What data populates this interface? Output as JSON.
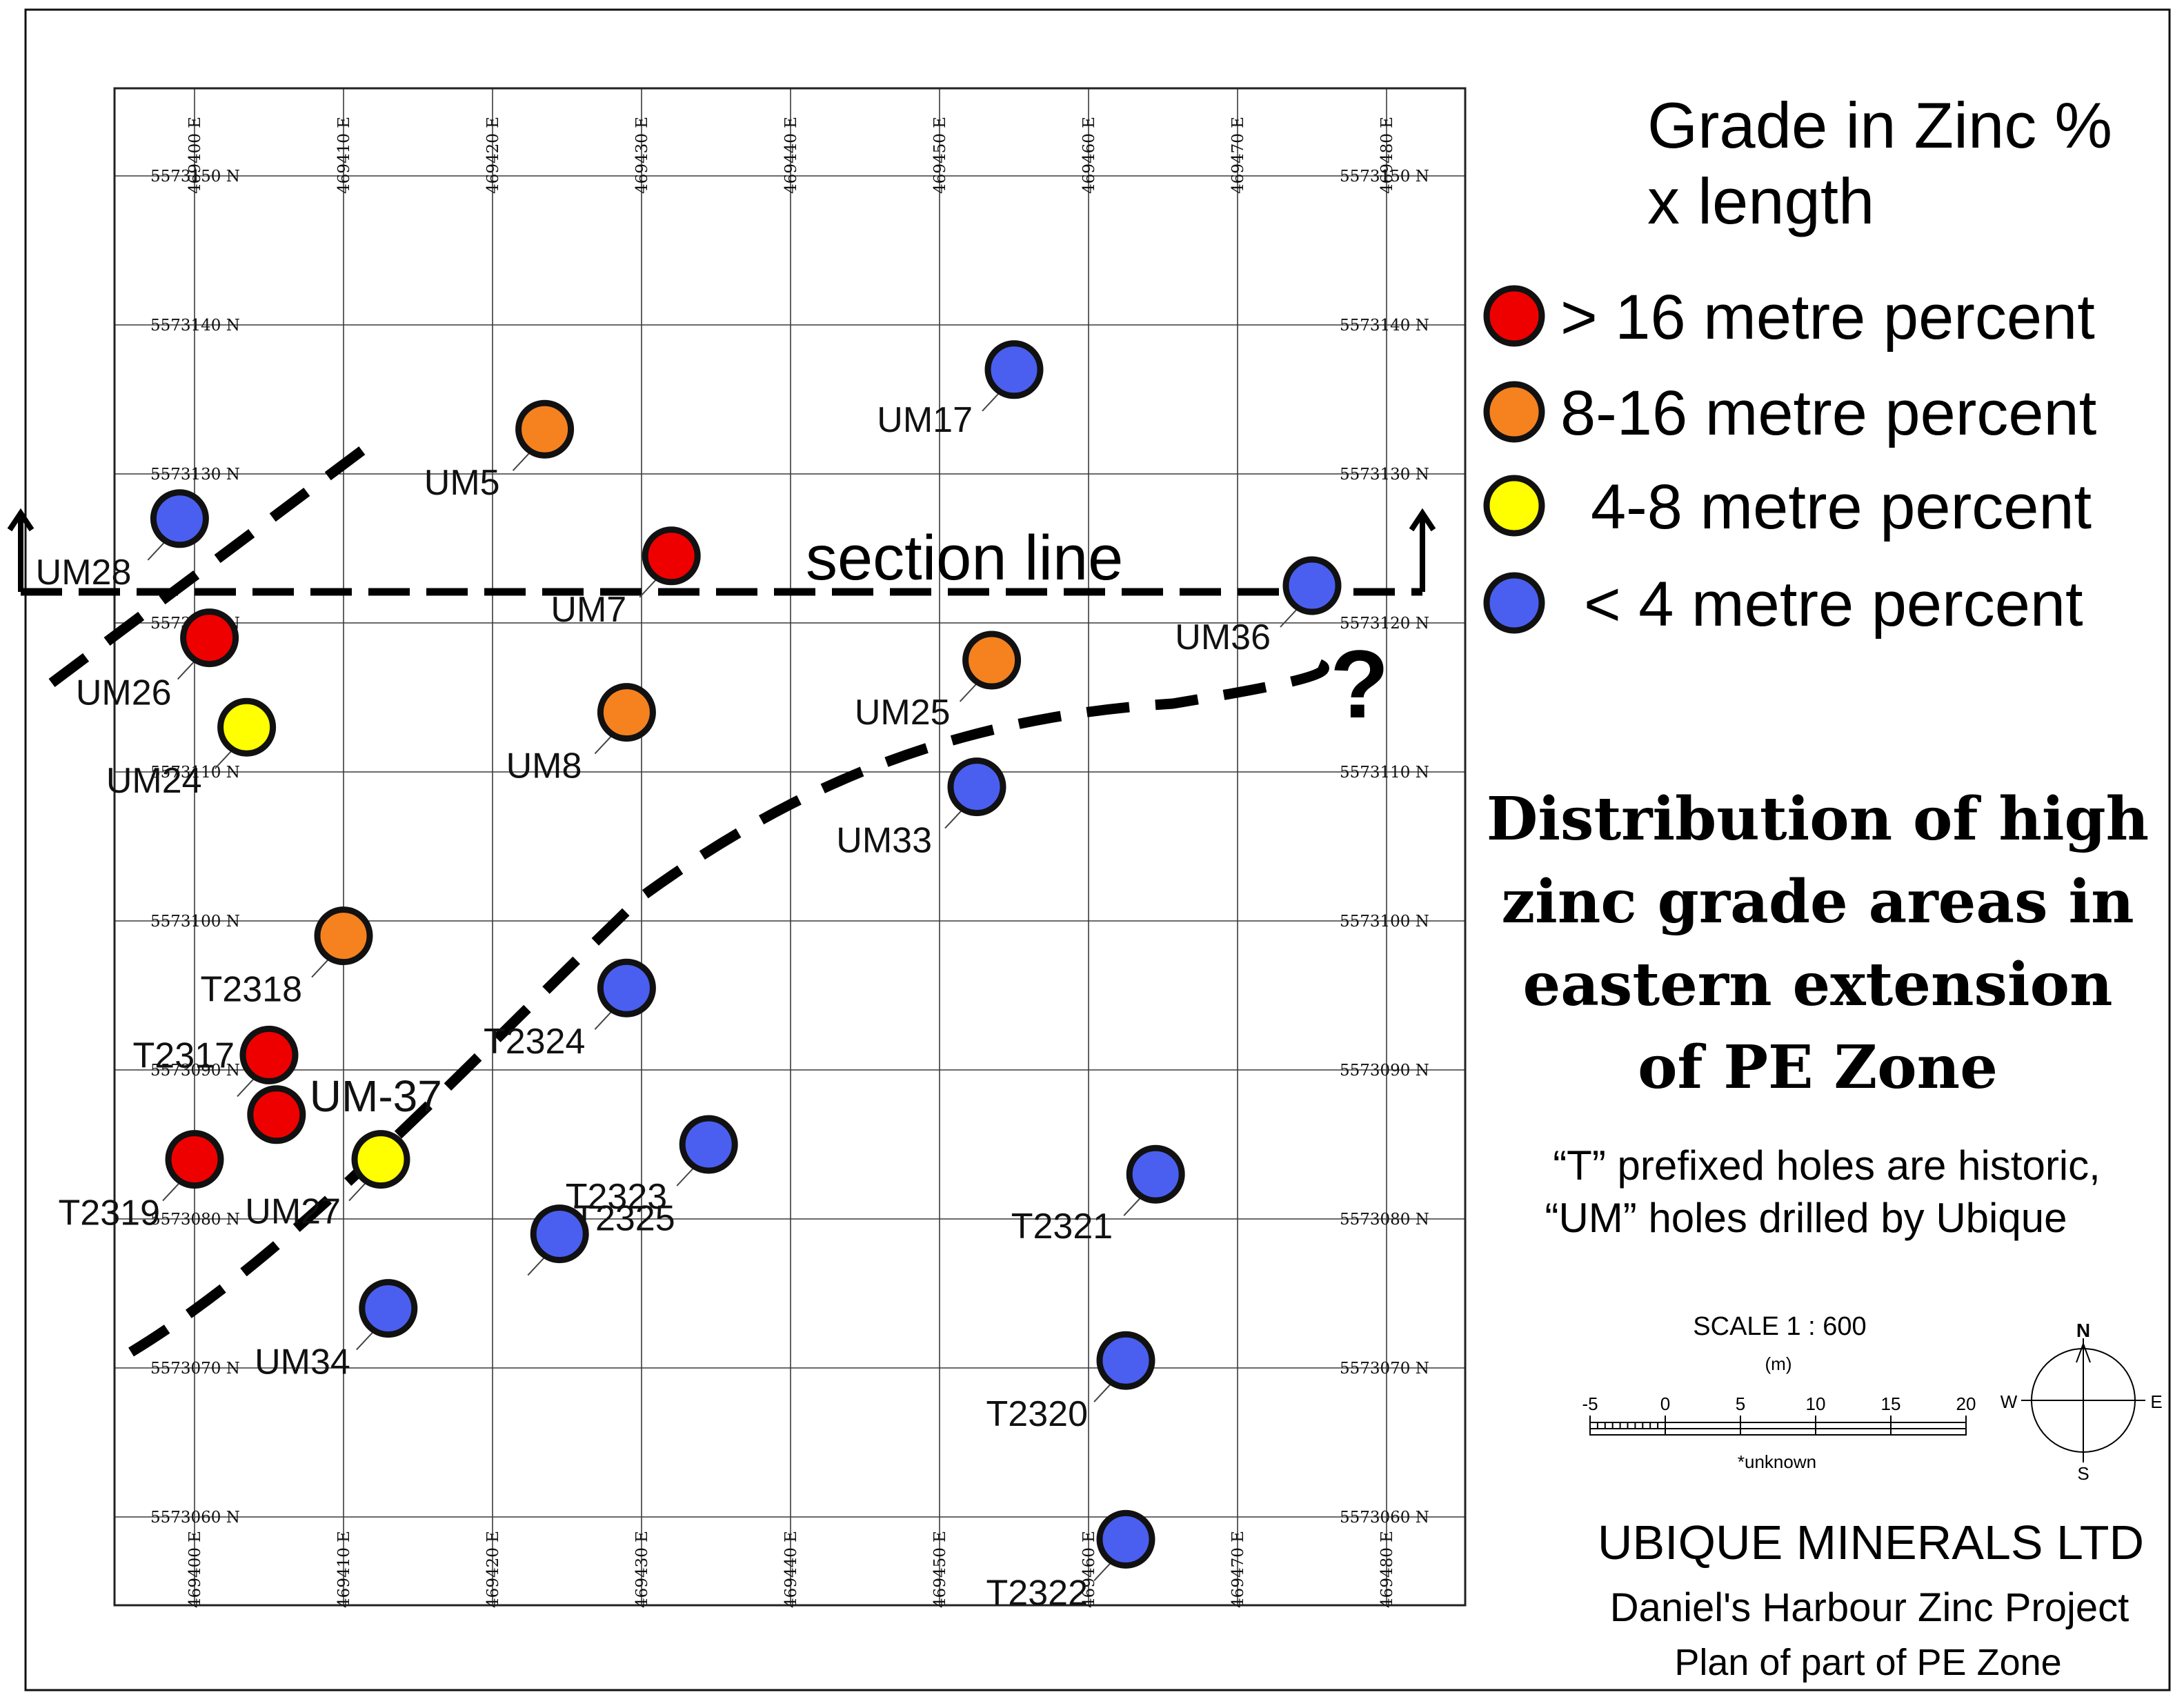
{
  "map": {
    "section_label": "section line",
    "uncertain_mark": "?",
    "easting_labels": [
      "469400 E",
      "469410 E",
      "469420 E",
      "469430 E",
      "469440 E",
      "469450 E",
      "469460 E",
      "469470 E",
      "469480 E"
    ],
    "northing_labels": [
      "5573150 N",
      "5573140 N",
      "5573130 N",
      "5573120 N",
      "5573110 N",
      "5573100 N",
      "5573090 N",
      "5573080 N",
      "5573070 N",
      "5573060 N"
    ]
  },
  "colors": {
    "over_16": "#ee0000",
    "8_to_16": "#f5821f",
    "4_to_8": "#ffff00",
    "under_4": "#4a5ff0"
  },
  "holes": [
    {
      "id": "UM28",
      "grade": "under_4",
      "easting": 469399,
      "northing": 5573127
    },
    {
      "id": "UM26",
      "grade": "over_16",
      "easting": 469401,
      "northing": 5573119
    },
    {
      "id": "UM24",
      "grade": "4_to_8",
      "easting": 469403.5,
      "northing": 5573113
    },
    {
      "id": "UM5",
      "grade": "8_to_16",
      "easting": 469423.5,
      "northing": 5573133
    },
    {
      "id": "UM7",
      "grade": "over_16",
      "easting": 469432,
      "northing": 5573124.5
    },
    {
      "id": "UM8",
      "grade": "8_to_16",
      "easting": 469429,
      "northing": 5573114
    },
    {
      "id": "UM17",
      "grade": "under_4",
      "easting": 469455,
      "northing": 5573137
    },
    {
      "id": "UM25",
      "grade": "8_to_16",
      "easting": 469453.5,
      "northing": 5573117.5
    },
    {
      "id": "UM36",
      "grade": "under_4",
      "easting": 469475,
      "northing": 5573122.5
    },
    {
      "id": "UM33",
      "grade": "under_4",
      "easting": 469452.5,
      "northing": 5573109
    },
    {
      "id": "T2318",
      "grade": "8_to_16",
      "easting": 469410,
      "northing": 5573099
    },
    {
      "id": "T2324",
      "grade": "under_4",
      "easting": 469429,
      "northing": 5573095.5
    },
    {
      "id": "T2317",
      "grade": "over_16",
      "easting": 469405,
      "northing": 5573091
    },
    {
      "id": "UM-37",
      "grade": "over_16",
      "easting": 469405.5,
      "northing": 5573087
    },
    {
      "id": "T2319",
      "grade": "over_16",
      "easting": 469400,
      "northing": 5573084
    },
    {
      "id": "UM27",
      "grade": "4_to_8",
      "easting": 469412.5,
      "northing": 5573084
    },
    {
      "id": "T2323",
      "grade": "under_4",
      "easting": 469434.5,
      "northing": 5573085
    },
    {
      "id": "T2321",
      "grade": "under_4",
      "easting": 469464.5,
      "northing": 5573083
    },
    {
      "id": "T2325",
      "grade": "under_4",
      "easting": 469424.5,
      "northing": 5573079
    },
    {
      "id": "UM34",
      "grade": "under_4",
      "easting": 469413,
      "northing": 5573074
    },
    {
      "id": "T2320",
      "grade": "under_4",
      "easting": 469462.5,
      "northing": 5573070.5
    },
    {
      "id": "T2322",
      "grade": "under_4",
      "easting": 469462.5,
      "northing": 5573058.5
    }
  ],
  "legend": {
    "title_line1": "Grade in Zinc %",
    "title_line2": "x length",
    "items": [
      {
        "grade": "over_16",
        "label": "> 16 metre percent"
      },
      {
        "grade": "8_to_16",
        "label": "8-16 metre percent"
      },
      {
        "grade": "4_to_8",
        "label": "4-8 metre percent"
      },
      {
        "grade": "under_4",
        "label": "< 4 metre percent"
      }
    ]
  },
  "title": {
    "lines": [
      "Distribution of high",
      "zinc grade areas in",
      "eastern extension",
      "of PE Zone"
    ]
  },
  "note": {
    "lines": [
      "“T” prefixed holes are historic,",
      "“UM” holes drilled by Ubique"
    ]
  },
  "scale": {
    "label": "SCALE  1 : 600",
    "unit": "(m)",
    "ticks": [
      "-5",
      "0",
      "5",
      "10",
      "15",
      "20"
    ],
    "note": "*unknown"
  },
  "compass": {
    "n": "N",
    "s": "S",
    "e": "E",
    "w": "W"
  },
  "company": {
    "name": "UBIQUE MINERALS LTD",
    "project": "Daniel's Harbour  Zinc Project",
    "plan": "Plan  of part of PE Zone"
  }
}
